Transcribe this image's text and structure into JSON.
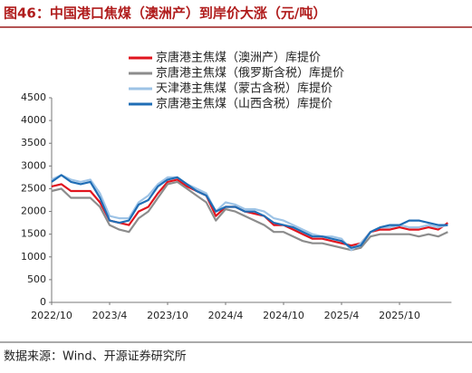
{
  "chart_data": {
    "type": "line",
    "title": "图46：中国港口焦煤（澳洲产）到岸价大涨（元/吨）",
    "source": "数据来源：Wind、开源证券研究所",
    "categories": [
      "2022/10",
      null,
      null,
      null,
      null,
      null,
      "2023/4",
      null,
      null,
      null,
      null,
      null,
      "2023/10",
      null,
      null,
      null,
      null,
      null,
      "2024/4",
      null,
      null,
      null,
      null,
      null,
      "2024/10",
      null,
      null,
      null,
      null,
      null,
      "2025/4",
      null,
      null,
      null,
      null,
      null,
      "2025/10",
      null,
      null,
      null,
      null,
      null
    ],
    "ylim": [
      0,
      4500
    ],
    "yticks": [
      0,
      500,
      1000,
      1500,
      2000,
      2500,
      3000,
      3500,
      4000,
      4500
    ],
    "series": [
      {
        "name": "京唐港主焦煤（澳洲产）库提价",
        "color": "#e0141e",
        "values": [
          2550,
          2600,
          2450,
          2450,
          2450,
          2200,
          1800,
          1750,
          1700,
          2000,
          2100,
          2400,
          2650,
          2700,
          2550,
          2450,
          2350,
          1900,
          2100,
          2100,
          2000,
          1950,
          1900,
          1700,
          1700,
          1600,
          1500,
          1400,
          1400,
          1350,
          1300,
          1250,
          1300,
          1550,
          1600,
          1600,
          1650,
          1600,
          1600,
          1650,
          1600,
          1750
        ]
      },
      {
        "name": "京唐港主焦煤（俄罗斯含税）库提价",
        "color": "#8c8c8c",
        "values": [
          2450,
          2500,
          2300,
          2300,
          2300,
          2100,
          1700,
          1600,
          1550,
          1850,
          2000,
          2300,
          2600,
          2650,
          2500,
          2350,
          2200,
          1800,
          2050,
          2000,
          1900,
          1800,
          1700,
          1550,
          1550,
          1450,
          1350,
          1300,
          1300,
          1250,
          1200,
          1150,
          1200,
          1450,
          1500,
          1500,
          1500,
          1500,
          1450,
          1500,
          1450,
          1550
        ]
      },
      {
        "name": "天津港主焦煤（蒙古含税）库提价",
        "color": "#9dc3e6",
        "values": [
          2700,
          2800,
          2700,
          2650,
          2700,
          2400,
          1900,
          1850,
          1850,
          2200,
          2350,
          2600,
          2750,
          2750,
          2600,
          2500,
          2400,
          2000,
          2200,
          2150,
          2050,
          2050,
          2000,
          1850,
          1800,
          1700,
          1600,
          1500,
          1450,
          1450,
          1400,
          1150,
          1300,
          1550,
          1650,
          1650,
          1700,
          1650,
          1650,
          1700,
          1650,
          1700
        ]
      },
      {
        "name": "京唐港主焦煤（山西含税）库提价",
        "color": "#1f6db5",
        "values": [
          2650,
          2800,
          2650,
          2600,
          2650,
          2300,
          1800,
          1750,
          1800,
          2150,
          2250,
          2550,
          2700,
          2750,
          2600,
          2450,
          2350,
          2000,
          2100,
          2100,
          2000,
          2000,
          1900,
          1750,
          1700,
          1650,
          1550,
          1450,
          1450,
          1400,
          1350,
          1200,
          1250,
          1550,
          1650,
          1700,
          1700,
          1800,
          1800,
          1750,
          1700,
          1700
        ]
      }
    ]
  }
}
